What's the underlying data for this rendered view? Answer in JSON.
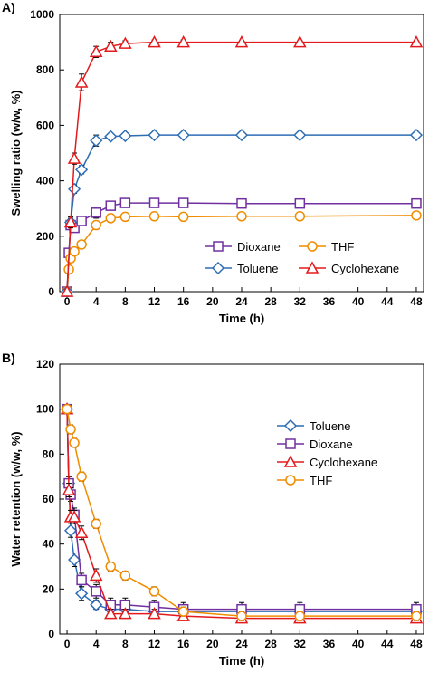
{
  "panels": [
    {
      "label": "A)"
    },
    {
      "label": "B)"
    }
  ],
  "chart_data": [
    {
      "type": "line",
      "title": "",
      "xlabel": "Time (h)",
      "ylabel": "Swelling ratio (w/w, %)",
      "xlim": [
        -1,
        49
      ],
      "ylim": [
        0,
        1000
      ],
      "xticks": [
        0,
        4,
        8,
        12,
        16,
        20,
        24,
        28,
        32,
        36,
        40,
        44,
        48
      ],
      "yticks": [
        0,
        200,
        400,
        600,
        800,
        1000
      ],
      "legend_position": "bottom-right",
      "legend_columns": 2,
      "grid": false,
      "series": [
        {
          "name": "Dioxane",
          "color": "#7030A0",
          "marker": "square",
          "x": [
            0,
            0.25,
            0.5,
            1,
            2,
            4,
            6,
            8,
            12,
            16,
            24,
            32,
            48
          ],
          "y": [
            0,
            140,
            240,
            230,
            255,
            285,
            310,
            320,
            320,
            320,
            318,
            318,
            318
          ],
          "err": [
            0,
            10,
            15,
            15,
            15,
            20,
            15,
            15,
            15,
            15,
            15,
            15,
            15
          ]
        },
        {
          "name": "THF",
          "color": "#F08C00",
          "marker": "circle",
          "x": [
            0,
            0.25,
            0.5,
            1,
            2,
            4,
            6,
            8,
            12,
            16,
            24,
            32,
            48
          ],
          "y": [
            0,
            80,
            120,
            145,
            170,
            240,
            265,
            270,
            272,
            270,
            272,
            272,
            275
          ],
          "err": [
            0,
            10,
            10,
            10,
            10,
            15,
            12,
            12,
            12,
            12,
            12,
            12,
            12
          ]
        },
        {
          "name": "Toluene",
          "color": "#2E6DB4",
          "marker": "diamond",
          "x": [
            0,
            0.5,
            1,
            2,
            4,
            6,
            8,
            12,
            16,
            24,
            32,
            48
          ],
          "y": [
            0,
            250,
            370,
            440,
            545,
            560,
            562,
            565,
            565,
            565,
            565,
            565
          ],
          "err": [
            0,
            15,
            15,
            15,
            20,
            10,
            8,
            8,
            8,
            5,
            5,
            5
          ]
        },
        {
          "name": "Cyclohexane",
          "color": "#E31A1C",
          "marker": "triangle",
          "x": [
            0,
            0.5,
            1,
            2,
            4,
            6,
            8,
            12,
            16,
            24,
            32,
            48
          ],
          "y": [
            0,
            250,
            480,
            755,
            865,
            885,
            895,
            900,
            900,
            900,
            900,
            900
          ],
          "err": [
            0,
            20,
            20,
            30,
            20,
            15,
            10,
            8,
            8,
            5,
            5,
            5
          ]
        }
      ]
    },
    {
      "type": "line",
      "title": "",
      "xlabel": "Time (h)",
      "ylabel": "Water retention (w/w, %)",
      "xlim": [
        -1,
        49
      ],
      "ylim": [
        0,
        120
      ],
      "xticks": [
        0,
        4,
        8,
        12,
        16,
        20,
        24,
        28,
        32,
        36,
        40,
        44,
        48
      ],
      "yticks": [
        0,
        20,
        40,
        60,
        80,
        100,
        120
      ],
      "legend_position": "top-right",
      "legend_columns": 1,
      "grid": false,
      "series": [
        {
          "name": "Toluene",
          "color": "#2E6DB4",
          "marker": "diamond",
          "x": [
            0,
            0.25,
            0.5,
            1,
            2,
            4,
            6,
            8,
            12,
            16,
            24,
            32,
            48
          ],
          "y": [
            100,
            67,
            46,
            33,
            18,
            13,
            11,
            11,
            10,
            10,
            10,
            10,
            10
          ],
          "err": [
            0,
            3,
            3,
            3,
            3,
            2,
            2,
            2,
            2,
            2,
            2,
            2,
            2
          ]
        },
        {
          "name": "Dioxane",
          "color": "#7030A0",
          "marker": "square",
          "x": [
            0,
            0.25,
            0.5,
            1,
            2,
            4,
            6,
            8,
            12,
            16,
            24,
            32,
            48
          ],
          "y": [
            100,
            67,
            62,
            53,
            24,
            19,
            13,
            13,
            12,
            11,
            11,
            11,
            11
          ],
          "err": [
            0,
            3,
            3,
            3,
            3,
            3,
            3,
            3,
            3,
            3,
            3,
            3,
            3
          ]
        },
        {
          "name": "Cyclohexane",
          "color": "#E31A1C",
          "marker": "triangle",
          "x": [
            0,
            0.25,
            0.5,
            1,
            2,
            4,
            6,
            8,
            12,
            16,
            24,
            32,
            48
          ],
          "y": [
            100,
            64,
            52,
            52,
            45,
            26,
            9,
            9,
            9,
            8,
            7,
            7,
            7
          ],
          "err": [
            0,
            3,
            3,
            3,
            3,
            3,
            2,
            2,
            2,
            2,
            2,
            2,
            2
          ]
        },
        {
          "name": "THF",
          "color": "#F08C00",
          "marker": "circle",
          "x": [
            0,
            0.5,
            1,
            2,
            4,
            6,
            8,
            12,
            16,
            24,
            32,
            48
          ],
          "y": [
            100,
            91,
            85,
            70,
            49,
            30,
            26,
            19,
            10,
            8,
            8,
            8
          ],
          "err": [
            0,
            2,
            2,
            2,
            2,
            2,
            2,
            2,
            2,
            2,
            2,
            2
          ]
        }
      ]
    }
  ]
}
